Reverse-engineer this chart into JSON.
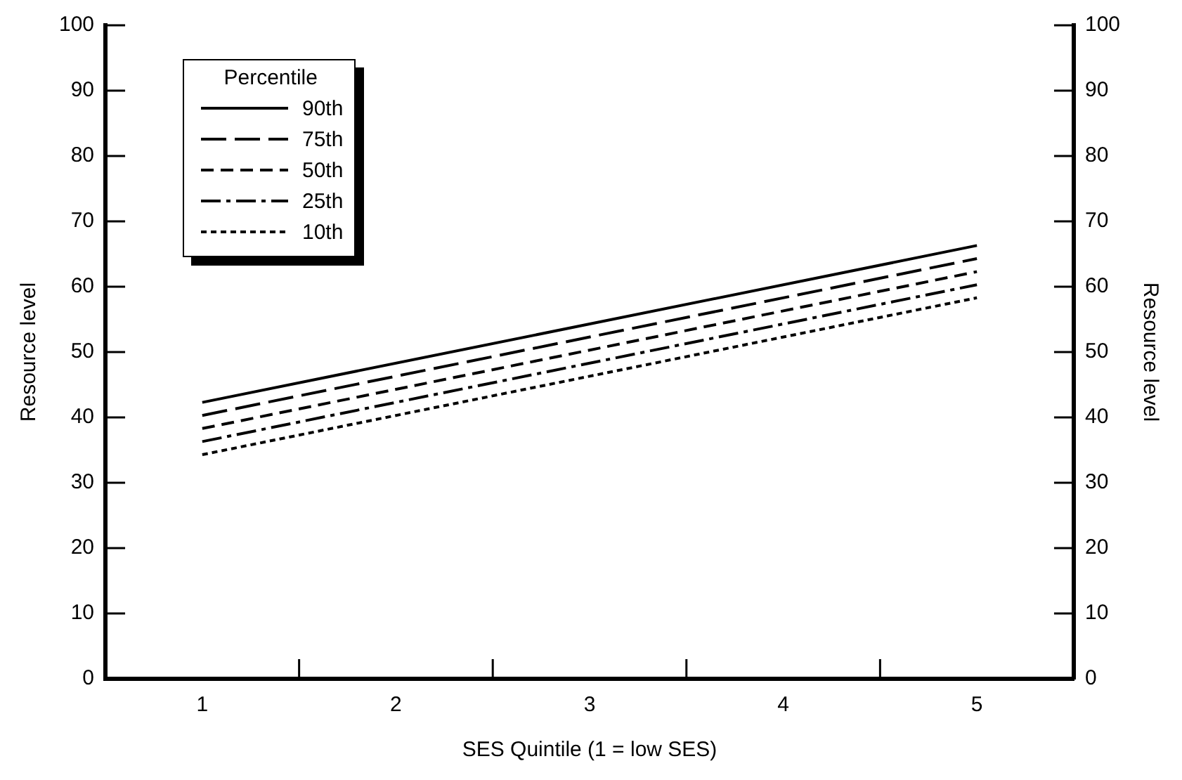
{
  "chart_data": {
    "type": "line",
    "xlabel": "SES Quintile (1 = low SES)",
    "ylabel": "Resource level",
    "y2label": "Resource level",
    "legend_title": "Percentile",
    "legend": "top left",
    "grid": false,
    "marker": "none",
    "x": [
      1,
      5
    ],
    "xlim": [
      0.5,
      5.5
    ],
    "xticks": [
      1,
      {
        "value": 1.5,
        "label": null
      },
      2,
      {
        "value": 2.5,
        "label": null
      },
      3,
      {
        "value": 3.5,
        "label": null
      },
      4,
      {
        "value": 4.5,
        "label": null
      },
      5
    ],
    "ylim": [
      0,
      100
    ],
    "yticks": [
      0,
      10,
      20,
      30,
      40,
      50,
      60,
      70,
      80,
      90,
      100
    ],
    "y2lim": [
      0,
      100
    ],
    "y2ticks": [
      0,
      10,
      20,
      30,
      40,
      50,
      60,
      70,
      80,
      90,
      100
    ],
    "series": [
      {
        "name": "90th",
        "color": "#000000",
        "line_style": "solid",
        "values": [
          42.3,
          66.3
        ]
      },
      {
        "name": "75th",
        "color": "#000000",
        "line_style": "dashed",
        "values": [
          40.3,
          64.3
        ]
      },
      {
        "name": "50th",
        "color": "#000000",
        "line_style": "dashed",
        "values": [
          38.3,
          62.3
        ]
      },
      {
        "name": "25th",
        "color": "#000000",
        "line_style": "dashed",
        "values": [
          36.3,
          60.3
        ]
      },
      {
        "name": "10th",
        "color": "#000000",
        "line_style": "dotted",
        "values": [
          34.3,
          58.3
        ]
      }
    ]
  }
}
